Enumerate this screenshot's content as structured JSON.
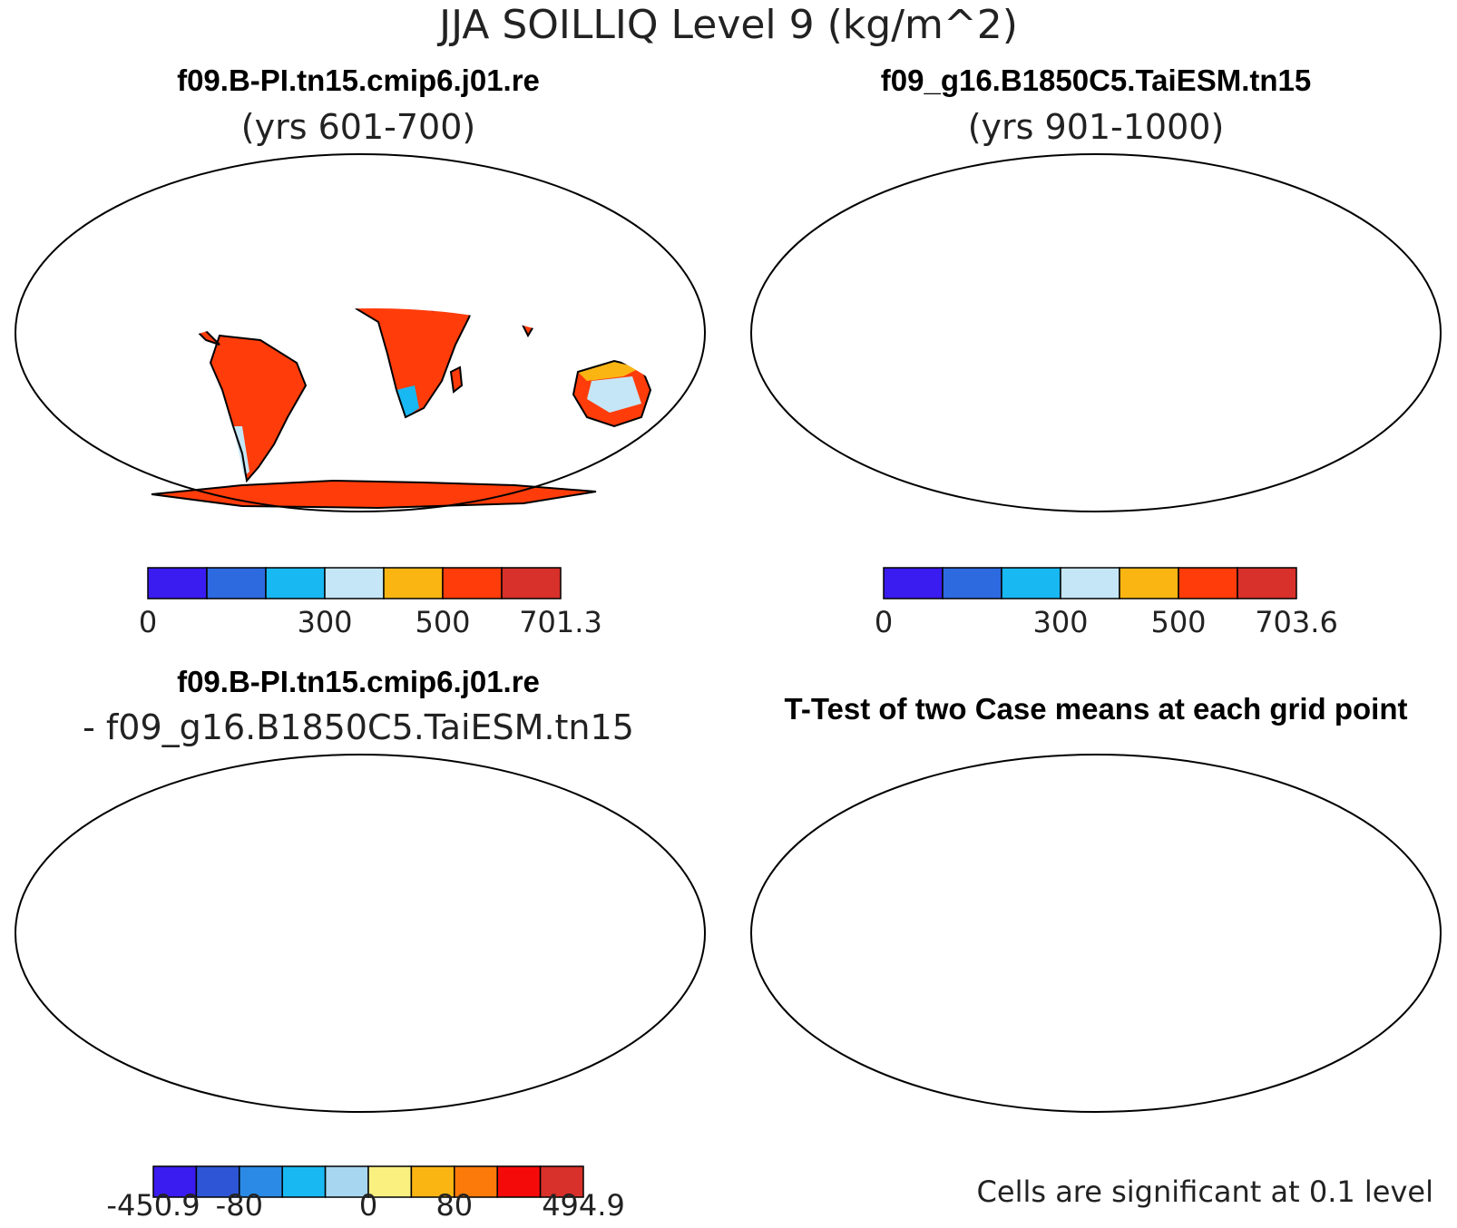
{
  "main_title": "JJA SOILLIQ Level 9 (kg/m^2)",
  "panels": [
    {
      "title": "f09.B-PI.tn15.cmip6.j01.re",
      "subtitle": "(yrs 601-700)",
      "colorbar": {
        "colors": [
          "#3a1cf0",
          "#2d6ae0",
          "#18b8f2",
          "#c4e6f6",
          "#fbb512",
          "#ff3c0a",
          "#d8302a"
        ],
        "tick_labels": [
          "0",
          "300",
          "500",
          "701.3"
        ]
      }
    },
    {
      "title": "f09_g16.B1850C5.TaiESM.tn15",
      "subtitle": "(yrs 901-1000)",
      "colorbar": {
        "colors": [
          "#3a1cf0",
          "#2d6ae0",
          "#18b8f2",
          "#c4e6f6",
          "#fbb512",
          "#ff3c0a",
          "#d8302a"
        ],
        "tick_labels": [
          "0",
          "300",
          "500",
          "703.6"
        ]
      }
    },
    {
      "title": "f09.B-PI.tn15.cmip6.j01.re",
      "subtitle": "- f09_g16.B1850C5.TaiESM.tn15",
      "colorbar": {
        "colors": [
          "#3a1cf0",
          "#2d55d6",
          "#2a8ae6",
          "#18b8f2",
          "#a6d6f0",
          "#faf080",
          "#fbb512",
          "#fb7a0a",
          "#f50a0a",
          "#d8302a"
        ],
        "tick_labels": [
          "-450.9",
          "-80",
          "0",
          "80",
          "494.9"
        ]
      }
    },
    {
      "title": "T-Test of two Case means at each grid point",
      "note": "Cells are significant at 0.1 level",
      "fill_color": "#f50a0a"
    }
  ]
}
